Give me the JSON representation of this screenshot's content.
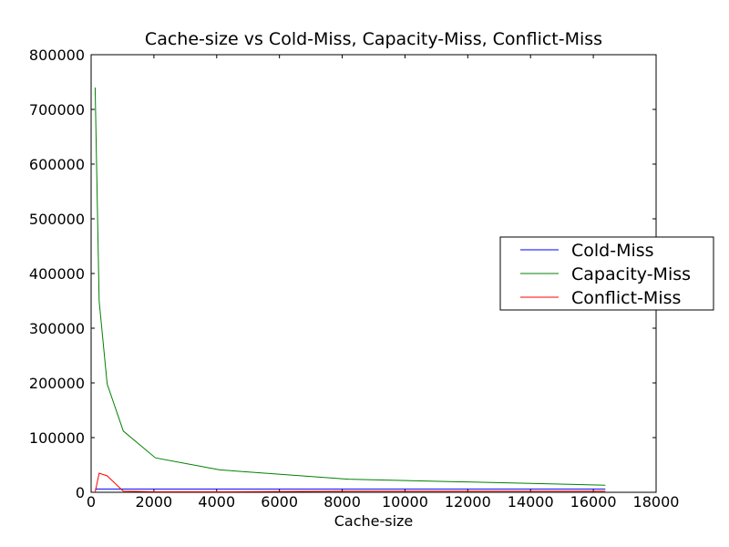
{
  "chart_data": {
    "type": "line",
    "title": "Cache-size vs Cold-Miss, Capacity-Miss, Conflict-Miss",
    "xlabel": "Cache-size",
    "ylabel": "",
    "xlim": [
      0,
      18000
    ],
    "ylim": [
      0,
      800000
    ],
    "x_ticks": [
      0,
      2000,
      4000,
      6000,
      8000,
      10000,
      12000,
      14000,
      16000,
      18000
    ],
    "y_ticks": [
      0,
      100000,
      200000,
      300000,
      400000,
      500000,
      600000,
      700000,
      800000
    ],
    "x_tick_labels": [
      "0",
      "2000",
      "4000",
      "6000",
      "8000",
      "10000",
      "12000",
      "14000",
      "16000",
      "18000"
    ],
    "y_tick_labels": [
      "0",
      "100000",
      "200000",
      "300000",
      "400000",
      "500000",
      "600000",
      "700000",
      "800000"
    ],
    "grid": false,
    "legend_position": "right",
    "x": [
      128,
      256,
      512,
      1024,
      2048,
      4096,
      8192,
      16384
    ],
    "series": [
      {
        "name": "Cold-Miss",
        "color": "#0000ff",
        "values": [
          6000,
          6000,
          6000,
          6000,
          6000,
          6000,
          6000,
          6000
        ]
      },
      {
        "name": "Capacity-Miss",
        "color": "#008000",
        "values": [
          740000,
          350000,
          198000,
          112000,
          63000,
          41000,
          24000,
          13000
        ]
      },
      {
        "name": "Conflict-Miss",
        "color": "#ff0000",
        "values": [
          0,
          35000,
          30000,
          2000,
          1000,
          1000,
          2000,
          2000
        ]
      }
    ]
  }
}
